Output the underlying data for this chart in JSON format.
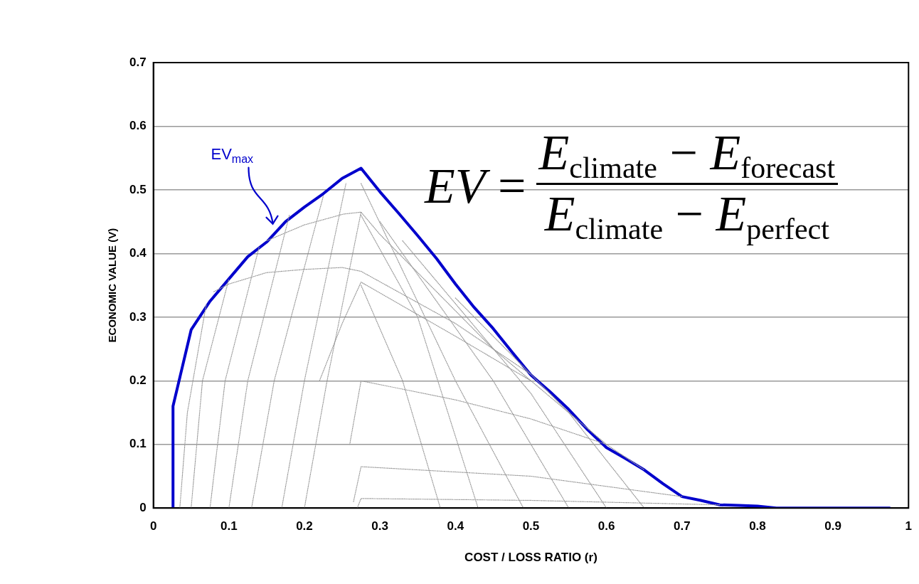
{
  "chart_data": {
    "type": "line",
    "xlabel": "COST / LOSS RATIO (r)",
    "ylabel": "ECONOMIC VALUE (V)",
    "xlim": [
      0,
      1
    ],
    "xticks": [
      0,
      0.1,
      0.2,
      0.3,
      0.4,
      0.5,
      0.6,
      0.7,
      0.8,
      0.9,
      1
    ],
    "ylim": [
      0,
      0.7
    ],
    "yticks": [
      0,
      0.1,
      0.2,
      0.3,
      0.4,
      0.5,
      0.6,
      0.7
    ],
    "grid": "y",
    "legend": false,
    "marker": "none",
    "annotations": [
      "EV$_{max}$",
      "EV =",
      "E$_{climate}$ − E$_{forecast}$",
      "E$_{climate}$ − E$_{perfect}$"
    ],
    "series": [
      {
        "color": "#0000cc",
        "line_style": "solid",
        "x": [
          0.026,
          0.026,
          0.05,
          0.075,
          0.1,
          0.125,
          0.15,
          0.175,
          0.2,
          0.225,
          0.25,
          0.275,
          0.3,
          0.325,
          0.35,
          0.375,
          0.4,
          0.425,
          0.45,
          0.475,
          0.5,
          0.525,
          0.55,
          0.575,
          0.6,
          0.625,
          0.65,
          0.675,
          0.7,
          0.725,
          0.75,
          0.775,
          0.8,
          0.825,
          0.85,
          0.9,
          0.975
        ],
        "values": [
          0,
          0.16,
          0.28,
          0.325,
          0.36,
          0.395,
          0.418,
          0.45,
          0.473,
          0.494,
          0.518,
          0.534,
          0.497,
          0.463,
          0.428,
          0.392,
          0.352,
          0.315,
          0.282,
          0.245,
          0.209,
          0.183,
          0.155,
          0.123,
          0.095,
          0.078,
          0.06,
          0.038,
          0.018,
          0.012,
          0.005,
          0.004,
          0.003,
          0,
          0,
          0,
          0
        ]
      },
      {
        "color": "#999999",
        "line_style": "dotted",
        "x": [
          0.15,
          0.2,
          0.252,
          0.275,
          0.3,
          0.35,
          0.4,
          0.45,
          0.5
        ],
        "values": [
          0.42,
          0.445,
          0.462,
          0.465,
          0.43,
          0.37,
          0.31,
          0.25,
          0.2
        ]
      },
      {
        "color": "#999999",
        "line_style": "dotted",
        "x": [
          0.08,
          0.1,
          0.15,
          0.2,
          0.25,
          0.275,
          0.4,
          0.5
        ],
        "values": [
          0.34,
          0.352,
          0.37,
          0.375,
          0.378,
          0.372,
          0.29,
          0.21
        ]
      },
      {
        "color": "#999999",
        "line_style": "dotted",
        "x": [
          0.22,
          0.25,
          0.275,
          0.4,
          0.5,
          0.6
        ],
        "values": [
          0.2,
          0.29,
          0.355,
          0.27,
          0.2,
          0.1
        ]
      },
      {
        "color": "#999999",
        "line_style": "dotted",
        "x": [
          0.26,
          0.275,
          0.4,
          0.5,
          0.6,
          0.65
        ],
        "values": [
          0.1,
          0.2,
          0.17,
          0.14,
          0.1,
          0.06
        ]
      },
      {
        "color": "#999999",
        "line_style": "dotted",
        "x": [
          0.265,
          0.275,
          0.5,
          0.7
        ],
        "values": [
          0.01,
          0.065,
          0.05,
          0.018
        ]
      },
      {
        "color": "#999999",
        "line_style": "dotted",
        "x": [
          0.27,
          0.275,
          0.5,
          0.75
        ],
        "values": [
          0,
          0.015,
          0.012,
          0.005
        ]
      },
      {
        "color": "#999999",
        "line_style": "dotted",
        "x": [
          0.035,
          0.045,
          0.07
        ],
        "values": [
          0,
          0.15,
          0.32
        ]
      },
      {
        "color": "#999999",
        "line_style": "dotted",
        "x": [
          0.05,
          0.065,
          0.1
        ],
        "values": [
          0,
          0.2,
          0.36
        ]
      },
      {
        "color": "#999999",
        "line_style": "dotted",
        "x": [
          0.075,
          0.095,
          0.14
        ],
        "values": [
          0,
          0.2,
          0.41
        ]
      },
      {
        "color": "#999999",
        "line_style": "dotted",
        "x": [
          0.1,
          0.125,
          0.18
        ],
        "values": [
          0,
          0.2,
          0.46
        ]
      },
      {
        "color": "#999999",
        "line_style": "dotted",
        "x": [
          0.13,
          0.16,
          0.225
        ],
        "values": [
          0,
          0.2,
          0.49
        ]
      },
      {
        "color": "#999999",
        "line_style": "dotted",
        "x": [
          0.17,
          0.2,
          0.255
        ],
        "values": [
          0,
          0.2,
          0.51
        ]
      },
      {
        "color": "#999999",
        "line_style": "dotted",
        "x": [
          0.2,
          0.23,
          0.275
        ],
        "values": [
          0,
          0.2,
          0.465
        ]
      },
      {
        "color": "#999999",
        "line_style": "dotted",
        "x": [
          0.275,
          0.33,
          0.38
        ],
        "values": [
          0.35,
          0.2,
          0
        ]
      },
      {
        "color": "#999999",
        "line_style": "dotted",
        "x": [
          0.275,
          0.35,
          0.43
        ],
        "values": [
          0.46,
          0.3,
          0
        ]
      },
      {
        "color": "#999999",
        "line_style": "dotted",
        "x": [
          0.275,
          0.4,
          0.49
        ],
        "values": [
          0.51,
          0.2,
          0
        ]
      },
      {
        "color": "#999999",
        "line_style": "dotted",
        "x": [
          0.3,
          0.45,
          0.55
        ],
        "values": [
          0.45,
          0.2,
          0
        ]
      },
      {
        "color": "#999999",
        "line_style": "dotted",
        "x": [
          0.33,
          0.5,
          0.6
        ],
        "values": [
          0.42,
          0.18,
          0
        ]
      },
      {
        "color": "#999999",
        "line_style": "dotted",
        "x": [
          0.4,
          0.55,
          0.65
        ],
        "values": [
          0.33,
          0.15,
          0
        ]
      }
    ]
  }
}
